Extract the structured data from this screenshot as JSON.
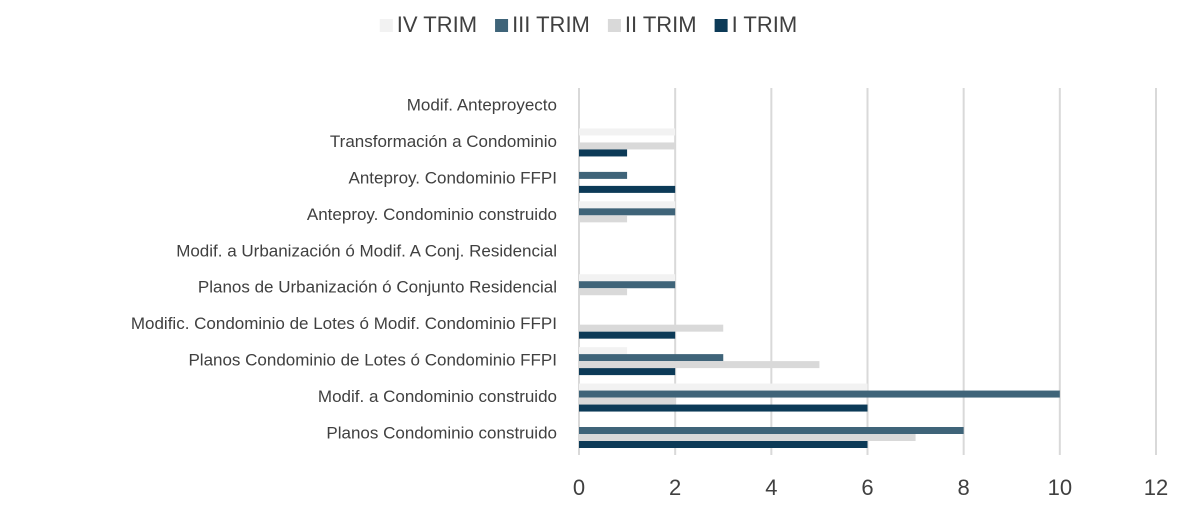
{
  "chart_data": {
    "type": "barh",
    "categories": [
      "Modif. Anteproyecto",
      "Transformación a Condominio",
      "Anteproy. Condominio FFPI",
      "Anteproy. Condominio construido",
      "Modif. a Urbanización ó Modif. A Conj. Residencial",
      "Planos de Urbanización ó Conjunto Residencial",
      "Modific. Condominio de Lotes ó Modif. Condominio FFPI",
      "Planos Condominio de Lotes ó Condominio FFPI",
      "Modif. a Condominio construido",
      "Planos Condominio construido"
    ],
    "series": [
      {
        "name": "IV TRIM",
        "color": "#f2f2f2",
        "values": [
          0,
          2,
          0,
          2,
          0,
          2,
          0,
          1,
          6,
          0
        ]
      },
      {
        "name": "III TRIM",
        "color": "#3f6479",
        "values": [
          0,
          0,
          1,
          2,
          0,
          2,
          0,
          3,
          10,
          8
        ]
      },
      {
        "name": "II TRIM",
        "color": "#d9d9d9",
        "values": [
          0,
          2,
          0,
          1,
          0,
          1,
          3,
          5,
          2,
          7
        ]
      },
      {
        "name": "I TRIM",
        "color": "#0c3a57",
        "values": [
          0,
          1,
          2,
          0,
          0,
          0,
          2,
          2,
          6,
          6
        ]
      }
    ],
    "xlim": [
      0,
      12
    ],
    "xticks": [
      0,
      2,
      4,
      6,
      8,
      10,
      12
    ],
    "grid": true,
    "legend": "top"
  }
}
